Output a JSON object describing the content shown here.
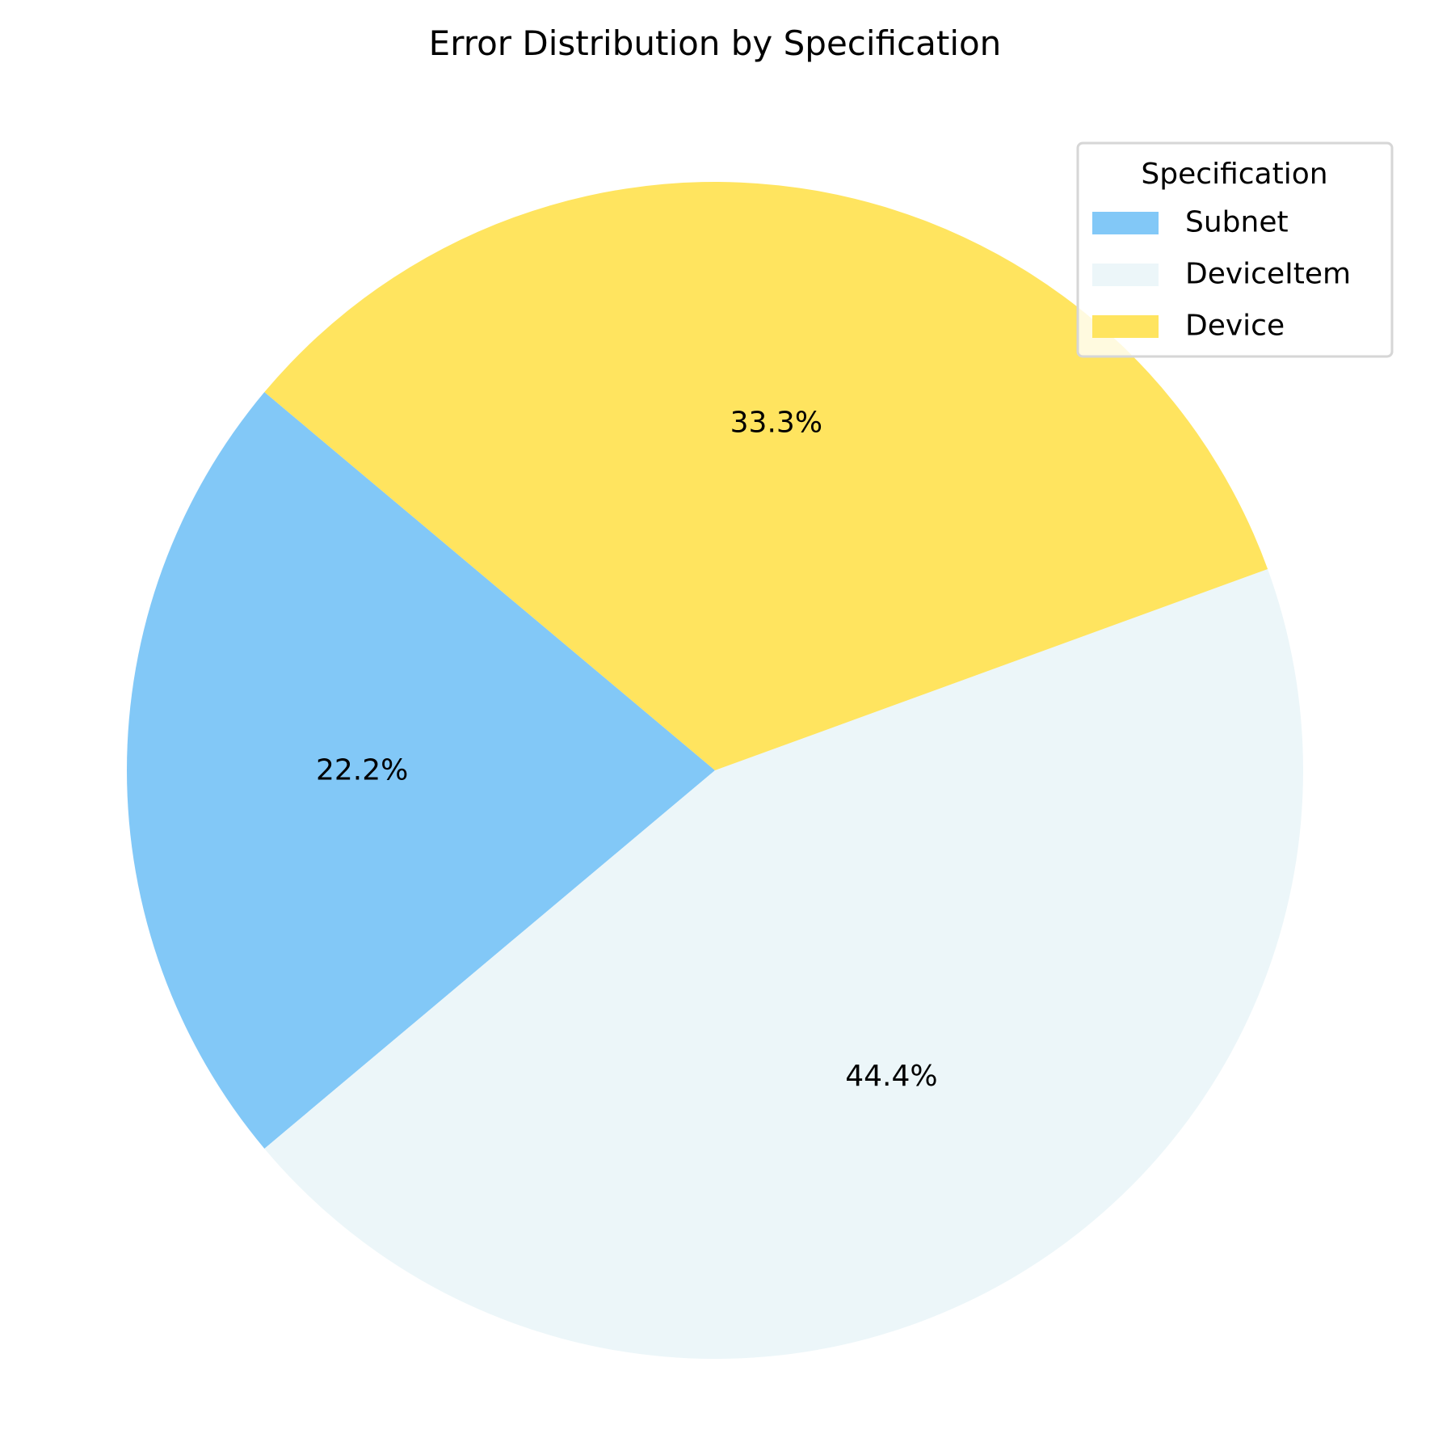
{
  "chart_data": {
    "type": "pie",
    "title": "Error Distribution by Specification",
    "legend_title": "Specification",
    "legend_position": "top-right",
    "start_angle_deg": 140,
    "direction": "counterclockwise",
    "slices": [
      {
        "label": "Subnet",
        "value": 22.2,
        "display": "22.2%",
        "color": "#82C8F7"
      },
      {
        "label": "DeviceItem",
        "value": 44.4,
        "display": "44.4%",
        "color": "#ECF6F9"
      },
      {
        "label": "Device",
        "value": 33.3,
        "display": "33.3%",
        "color": "#FFE45F"
      }
    ]
  }
}
